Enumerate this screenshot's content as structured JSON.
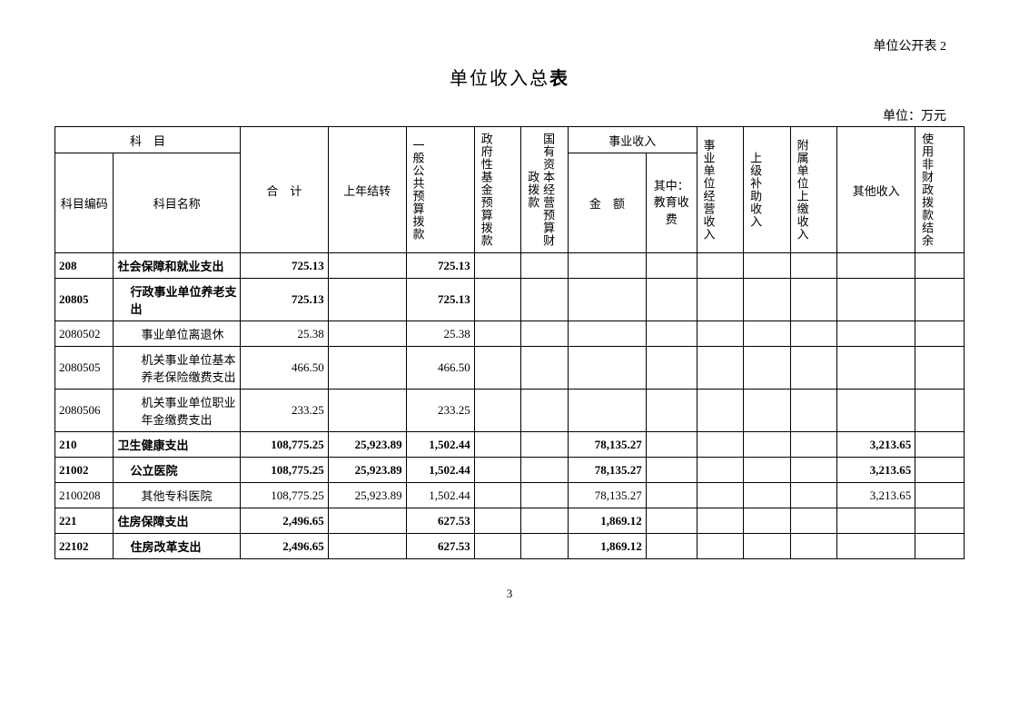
{
  "topRight": "单位公开表 2",
  "titlePrefix": "单位收入总",
  "titleBold": "表",
  "unitLabel": "单位：万元",
  "pageNumber": "3",
  "headers": {
    "subject": "科　目",
    "code": "科目编码",
    "name": "科目名称",
    "total": "合　计",
    "prevYear": "上年结转",
    "general": "一般公共预算拨款",
    "govFund": "政府性基金预算拨款",
    "soe": "国有资本经营预算财政拨款",
    "bizIncome": "事业收入",
    "bizAmount": "金　额",
    "bizEdu": "其中：教育收费",
    "bizOp": "事业单位经营收入",
    "upper": "上级补助收入",
    "subunit": "附属单位上缴收入",
    "other": "其他收入",
    "nonFin": "使用非财政拨款结余"
  },
  "rows": [
    {
      "bold": true,
      "indent": 0,
      "code": "208",
      "name": "社会保障和就业支出",
      "total": "725.13",
      "prev": "",
      "general": "725.13",
      "bizAmt": "",
      "other": ""
    },
    {
      "bold": true,
      "indent": 1,
      "code": "20805",
      "name": "行政事业单位养老支出",
      "total": "725.13",
      "prev": "",
      "general": "725.13",
      "bizAmt": "",
      "other": ""
    },
    {
      "bold": false,
      "indent": 2,
      "code": "2080502",
      "name": "事业单位离退休",
      "total": "25.38",
      "prev": "",
      "general": "25.38",
      "bizAmt": "",
      "other": ""
    },
    {
      "bold": false,
      "indent": 2,
      "code": "2080505",
      "name": "机关事业单位基本养老保险缴费支出",
      "total": "466.50",
      "prev": "",
      "general": "466.50",
      "bizAmt": "",
      "other": ""
    },
    {
      "bold": false,
      "indent": 2,
      "code": "2080506",
      "name": "机关事业单位职业年金缴费支出",
      "total": "233.25",
      "prev": "",
      "general": "233.25",
      "bizAmt": "",
      "other": ""
    },
    {
      "bold": true,
      "indent": 0,
      "code": "210",
      "name": "卫生健康支出",
      "total": "108,775.25",
      "prev": "25,923.89",
      "general": "1,502.44",
      "bizAmt": "78,135.27",
      "other": "3,213.65"
    },
    {
      "bold": true,
      "indent": 1,
      "code": "21002",
      "name": "公立医院",
      "total": "108,775.25",
      "prev": "25,923.89",
      "general": "1,502.44",
      "bizAmt": "78,135.27",
      "other": "3,213.65"
    },
    {
      "bold": false,
      "indent": 2,
      "code": "2100208",
      "name": "其他专科医院",
      "total": "108,775.25",
      "prev": "25,923.89",
      "general": "1,502.44",
      "bizAmt": "78,135.27",
      "other": "3,213.65"
    },
    {
      "bold": true,
      "indent": 0,
      "code": "221",
      "name": "住房保障支出",
      "total": "2,496.65",
      "prev": "",
      "general": "627.53",
      "bizAmt": "1,869.12",
      "other": ""
    },
    {
      "bold": true,
      "indent": 1,
      "code": "22102",
      "name": "住房改革支出",
      "total": "2,496.65",
      "prev": "",
      "general": "627.53",
      "bizAmt": "1,869.12",
      "other": ""
    }
  ]
}
